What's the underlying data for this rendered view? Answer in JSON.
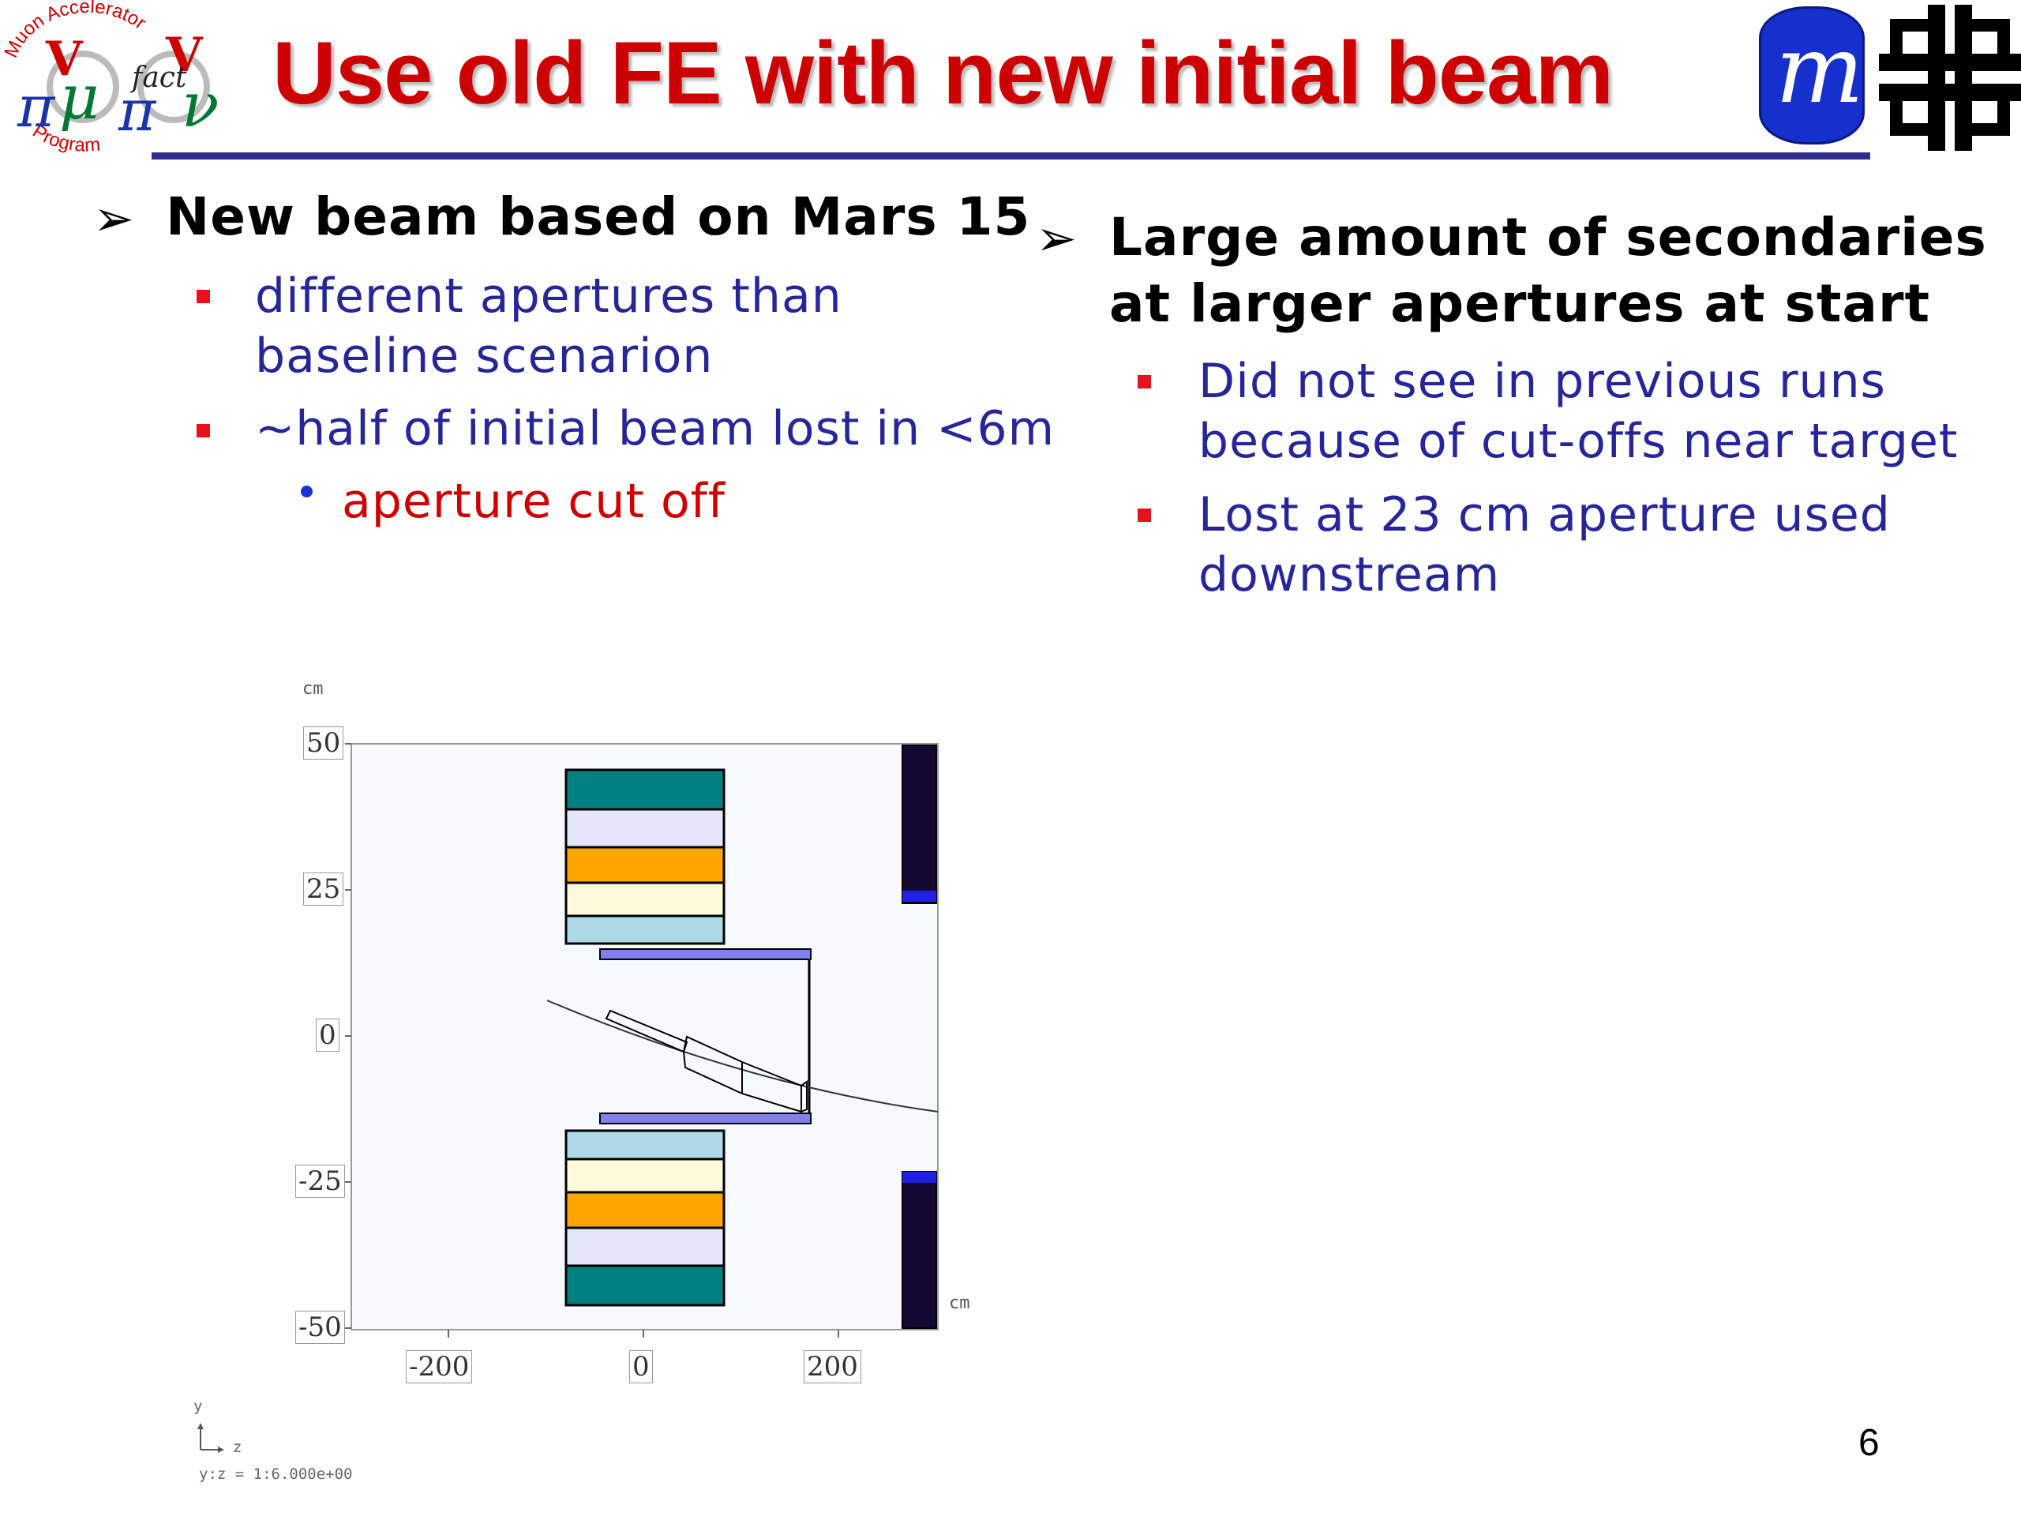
{
  "title": "Use old FE with new initial beam",
  "logos": {
    "left_logo_name": "muon-accelerator-program-nufact-logo",
    "left_logo_text_top": "Muon Accelerator",
    "left_logo_text_bottom": "Program",
    "left_logo_center": "fact",
    "right_logo_1": "mu",
    "right_logo_2": "fermilab-logo"
  },
  "left_column": {
    "bullet1": "New beam based on Mars 15",
    "sub1_line1": "different apertures than",
    "sub1_line2": "baseline scenarion",
    "sub2": "~half of initial beam lost in <6m",
    "subsub1": "aperture cut off"
  },
  "right_column": {
    "bullet1_line1": "Large amount of secondaries",
    "bullet1_line2": "at larger apertures at start",
    "sub1_line1": "Did not see in previous runs",
    "sub1_line2": "because of cut-offs near target",
    "sub2_line1": "Lost at 23 cm aperture used",
    "sub2_line2": "downstream"
  },
  "figure": {
    "y_unit": "cm",
    "x_unit": "cm",
    "y_ticks": [
      "50",
      "25",
      "0",
      "-25",
      "-50"
    ],
    "x_ticks": [
      "-200",
      "0",
      "200"
    ],
    "axis_y": "y",
    "axis_z": "z",
    "scale_text": "y:z  =  1:6.000e+00",
    "colors": {
      "teal": "#008080",
      "lavender": "#e6e6fa",
      "orange": "#ffa500",
      "cream": "#fffadc",
      "lightblue": "#add8e6",
      "purple": "#8080f0",
      "navy": "#120a33",
      "blue": "#2020e0"
    }
  },
  "page_number": "6"
}
